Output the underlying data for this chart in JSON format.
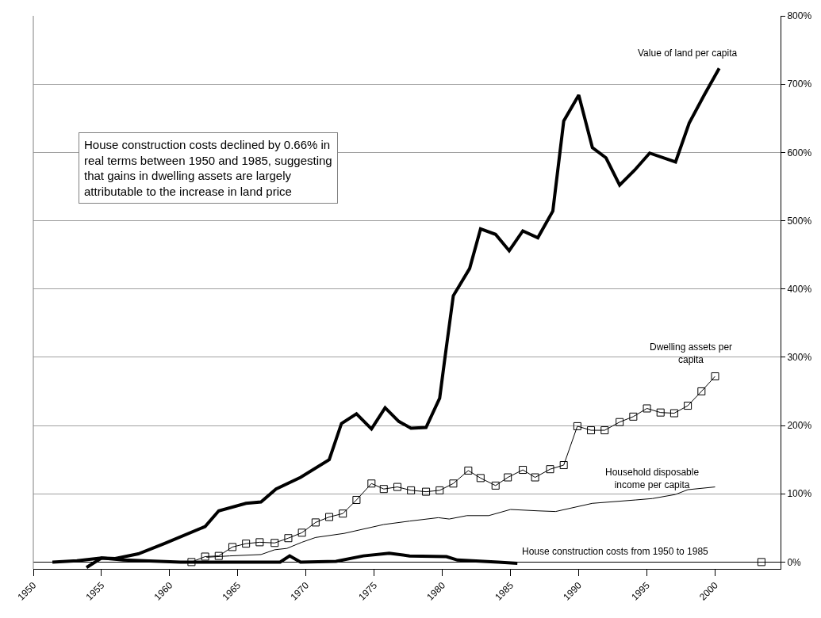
{
  "chart_data": {
    "type": "line",
    "xlim": [
      1950,
      2004.8
    ],
    "xticks": [
      1950,
      1955,
      1960,
      1965,
      1970,
      1975,
      1980,
      1985,
      1990,
      1995,
      2000
    ],
    "ylim": [
      -10,
      800
    ],
    "yticks": [
      {
        "value": 0,
        "label": "0%"
      },
      {
        "value": 100,
        "label": "100%"
      },
      {
        "value": 200,
        "label": "200%"
      },
      {
        "value": 300,
        "label": "300%"
      },
      {
        "value": 400,
        "label": "400%"
      },
      {
        "value": 500,
        "label": "500%"
      },
      {
        "value": 600,
        "label": "600%"
      },
      {
        "value": 700,
        "label": "700%"
      },
      {
        "value": 800,
        "label": "800%"
      }
    ],
    "grid": "y",
    "legend": false,
    "annotations": [
      "House construction costs declined by 0.66% in\nreal terms between 1950 and 1985, suggesting\nthat gains in dwelling assets are largely\nattributable to the increase in land price"
    ],
    "series": [
      {
        "name": "Value of land per capita",
        "color": "#000000",
        "marker": "none",
        "x": [
          1951.4,
          1953.2,
          1955.0,
          1956.0,
          1957.7,
          1959.6,
          1962.6,
          1963.6,
          1965.6,
          1966.7,
          1967.8,
          1969.6,
          1971.7,
          1972.6,
          1973.7,
          1974.8,
          1975.8,
          1976.8,
          1977.7,
          1978.8,
          1979.8,
          1980.2,
          1980.8,
          1982.0,
          1982.8,
          1983.9,
          1984.9,
          1985.9,
          1987.0,
          1988.1,
          1988.9,
          1990.0,
          1991.0,
          1992.0,
          1993.0,
          1994.1,
          1995.2,
          1997.1,
          1998.1,
          1999.2,
          2000.3
        ],
        "values": [
          0,
          2,
          6,
          5,
          12,
          27,
          52,
          75,
          86,
          88,
          107,
          124,
          150,
          203,
          217,
          195,
          226,
          206,
          196,
          197,
          240,
          301,
          390,
          430,
          488,
          480,
          456,
          485,
          475,
          514,
          646,
          684,
          607,
          592,
          552,
          574,
          599,
          586,
          643,
          684,
          723
        ]
      },
      {
        "name": "Dwelling assets per\ncapita",
        "color": "#000000",
        "marker": "square",
        "x": [
          1961.6,
          1962.6,
          1963.6,
          1964.6,
          1965.6,
          1966.6,
          1967.7,
          1968.7,
          1969.7,
          1970.7,
          1971.7,
          1972.7,
          1973.7,
          1974.8,
          1975.7,
          1976.7,
          1977.7,
          1978.8,
          1979.8,
          1980.8,
          1981.9,
          1982.8,
          1983.9,
          1984.8,
          1985.9,
          1986.8,
          1987.9,
          1988.9,
          1989.9,
          1990.9,
          1991.9,
          1993.0,
          1994.0,
          1995.0,
          1996.0,
          1997.0,
          1998.0,
          1999.0,
          2000.0,
          2001.7,
          2003.4
        ],
        "values": [
          0,
          8,
          9,
          22,
          27,
          29,
          28,
          35,
          43,
          58,
          66,
          71,
          91,
          115,
          107,
          110,
          105,
          103,
          105,
          115,
          134,
          123,
          112,
          124,
          135,
          124,
          136,
          142,
          199,
          193,
          193,
          205,
          213,
          225,
          219,
          218,
          229,
          250,
          272,
          null,
          0
        ]
      },
      {
        "name": "Household disposable\nincome per capita",
        "color": "#000000",
        "marker": "none",
        "x": [
          1962.7,
          1964.4,
          1966.7,
          1967.7,
          1968.6,
          1969.7,
          1970.7,
          1972.8,
          1975.7,
          1977.6,
          1979.7,
          1980.5,
          1981.8,
          1983.4,
          1985.0,
          1987.0,
          1988.3,
          1991.0,
          1994.2,
          1995.4,
          1997.1,
          1998.0,
          2000.0
        ],
        "values": [
          7,
          9,
          11,
          18,
          20,
          29,
          36,
          42,
          55,
          60,
          65,
          63,
          68,
          68,
          77,
          75,
          74,
          86,
          91,
          93,
          99,
          106,
          110
        ]
      },
      {
        "name": "House construction costs from 1950 to 1985",
        "color": "#000000",
        "marker": "none",
        "x": [
          1953.9,
          1955.0,
          1956.6,
          1960.8,
          1968.1,
          1968.8,
          1969.6,
          1972.2,
          1974.2,
          1976.1,
          1977.6,
          1980.3,
          1981.1,
          1984.1,
          1985.5
        ],
        "values": [
          -8,
          6,
          3,
          0,
          0,
          9,
          0,
          1,
          9,
          13,
          9,
          8,
          3,
          0,
          -2
        ]
      }
    ]
  }
}
